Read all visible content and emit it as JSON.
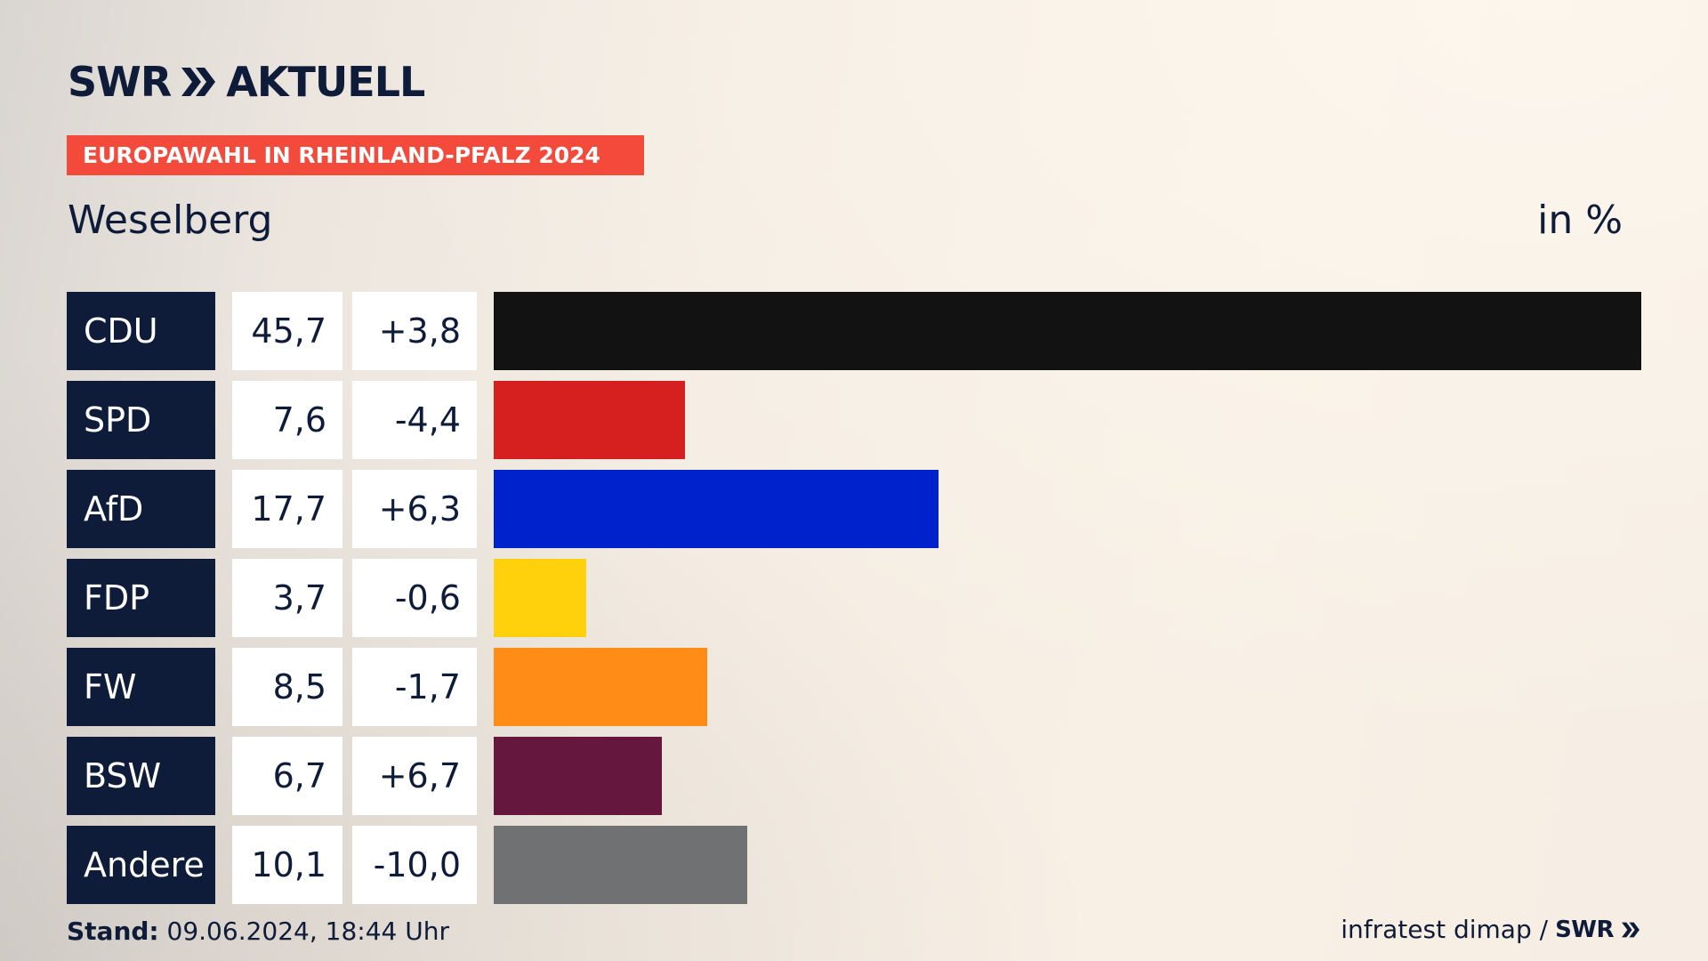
{
  "header": {
    "logo_text": "SWR",
    "logo_product": "AKTUELL",
    "banner": "EUROPAWAHL IN RHEINLAND-PFALZ 2024",
    "subtitle": "Weselberg",
    "unit": "in %"
  },
  "chart_data": {
    "type": "bar",
    "orientation": "horizontal",
    "title": "EUROPAWAHL IN RHEINLAND-PFALZ 2024",
    "subtitle": "Weselberg",
    "unit": "in %",
    "categories": [
      "CDU",
      "SPD",
      "AfD",
      "FDP",
      "FW",
      "BSW",
      "Andere"
    ],
    "values": [
      45.7,
      7.6,
      17.7,
      3.7,
      8.5,
      6.7,
      10.1
    ],
    "value_labels": [
      "45,7",
      "7,6",
      "17,7",
      "3,7",
      "8,5",
      "6,7",
      "10,1"
    ],
    "diff_labels": [
      "+3,8",
      "-4,4",
      "+6,3",
      "-0,6",
      "-1,7",
      "+6,7",
      "-10,0"
    ],
    "colors": [
      "#121212",
      "#d61f1f",
      "#0022cc",
      "#ffd00c",
      "#ff8c16",
      "#66173d",
      "#707173"
    ],
    "xlim": [
      0,
      45.7
    ]
  },
  "footer": {
    "stand_label": "Stand:",
    "stand_value": "09.06.2024, 18:44 Uhr",
    "source": "infratest dimap /",
    "source_logo": "SWR"
  }
}
